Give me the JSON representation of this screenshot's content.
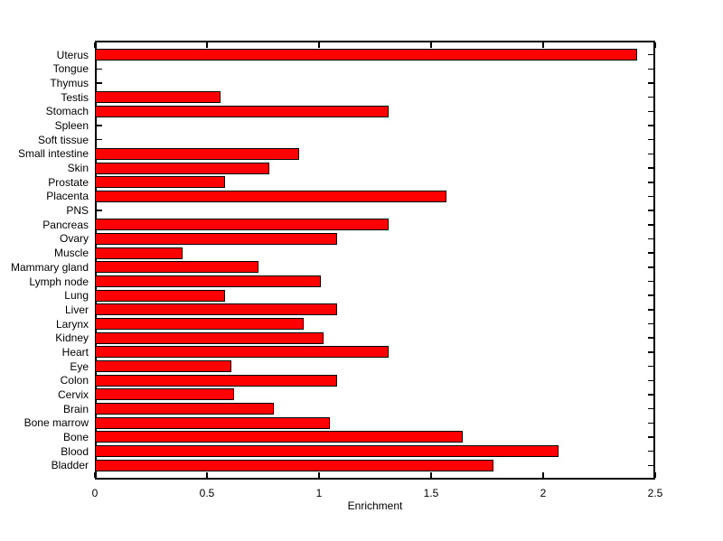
{
  "chart_data": {
    "type": "bar",
    "orientation": "horizontal",
    "title": "",
    "xlabel": "Enrichment",
    "ylabel": "",
    "xlim": [
      0,
      2.5
    ],
    "xticks": [
      0,
      0.5,
      1,
      1.5,
      2,
      2.5
    ],
    "xtick_labels": [
      "0",
      "0.5",
      "1",
      "1.5",
      "2",
      "2.5"
    ],
    "grid": false,
    "legend": null,
    "bar_color": "#ff0000",
    "bar_edge_color": "#000000",
    "axis_color": "#000000",
    "background_color": "#ffffff",
    "categories": [
      "Uterus",
      "Tongue",
      "Thymus",
      "Testis",
      "Stomach",
      "Spleen",
      "Soft tissue",
      "Small intestine",
      "Skin",
      "Prostate",
      "Placenta",
      "PNS",
      "Pancreas",
      "Ovary",
      "Muscle",
      "Mammary gland",
      "Lymph node",
      "Lung",
      "Liver",
      "Larynx",
      "Kidney",
      "Heart",
      "Eye",
      "Colon",
      "Cervix",
      "Brain",
      "Bone marrow",
      "Bone",
      "Blood",
      "Bladder"
    ],
    "values": [
      2.42,
      0,
      0,
      0.56,
      1.31,
      0,
      0,
      0.91,
      0.78,
      0.58,
      1.57,
      0,
      1.31,
      1.08,
      0.39,
      0.73,
      1.01,
      0.58,
      1.08,
      0.93,
      1.02,
      1.31,
      0.61,
      1.08,
      0.62,
      0.8,
      1.05,
      1.64,
      2.07,
      1.78
    ]
  }
}
